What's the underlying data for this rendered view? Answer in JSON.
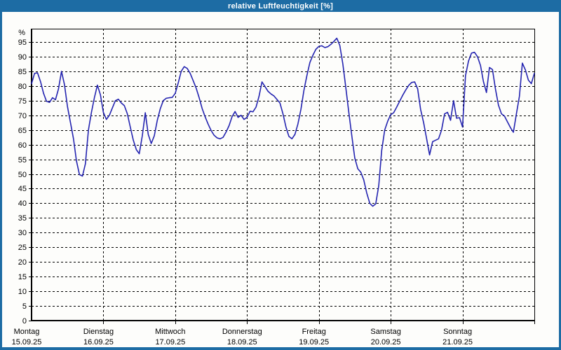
{
  "window": {
    "title": "relative Luftfeuchtigkeit [%]",
    "titlebar_color": "#1d6ca4",
    "content_background": "#fdfdfb"
  },
  "chart_data": {
    "type": "line",
    "title": "relative Luftfeuchtigkeit [%]",
    "ylabel": "%",
    "unit": "%",
    "ylim": [
      0,
      99
    ],
    "grid": "dashed",
    "legend_position": "none",
    "line_color": "#2424b0",
    "grid_color": "#000000",
    "axis_color": "#000000",
    "y_ticks": [
      0,
      5,
      10,
      15,
      20,
      25,
      30,
      35,
      40,
      45,
      50,
      55,
      60,
      65,
      70,
      75,
      80,
      85,
      90,
      95
    ],
    "x_days": [
      {
        "weekday": "Montag",
        "date": "15.09.25"
      },
      {
        "weekday": "Dienstag",
        "date": "16.09.25"
      },
      {
        "weekday": "Mittwoch",
        "date": "17.09.25"
      },
      {
        "weekday": "Donnerstag",
        "date": "18.09.25"
      },
      {
        "weekday": "Freitag",
        "date": "19.09.25"
      },
      {
        "weekday": "Samstag",
        "date": "20.09.25"
      },
      {
        "weekday": "Sonntag",
        "date": "21.09.25"
      }
    ],
    "sampling": "hourly",
    "series": [
      {
        "name": "relative Luftfeuchtigkeit",
        "values": [
          80.8,
          84.3,
          84.5,
          81.5,
          77.5,
          74.8,
          74.4,
          76.0,
          75.3,
          79.0,
          85.0,
          80.5,
          73.0,
          67.5,
          62.0,
          54.5,
          49.8,
          49.3,
          53.5,
          65.0,
          71.0,
          76.0,
          80.3,
          77.0,
          71.0,
          68.6,
          70.0,
          72.5,
          75.0,
          75.5,
          74.2,
          73.3,
          70.5,
          66.0,
          61.5,
          58.3,
          56.9,
          63.0,
          70.9,
          63.5,
          60.4,
          63.0,
          68.3,
          72.2,
          75.0,
          75.8,
          76.0,
          76.1,
          77.5,
          81.0,
          85.0,
          86.6,
          86.0,
          84.3,
          81.8,
          79.3,
          76.0,
          72.3,
          69.5,
          67.0,
          64.8,
          63.2,
          62.3,
          62.0,
          62.5,
          64.3,
          66.5,
          69.5,
          71.3,
          69.3,
          70.0,
          68.6,
          69.3,
          71.4,
          71.2,
          72.8,
          76.5,
          81.4,
          79.8,
          78.2,
          77.3,
          76.6,
          75.4,
          74.2,
          70.5,
          66.0,
          62.8,
          62.0,
          63.5,
          67.0,
          72.0,
          78.5,
          83.5,
          88.0,
          90.5,
          92.5,
          93.5,
          93.7,
          93.1,
          93.4,
          94.2,
          95.2,
          96.3,
          93.8,
          87.5,
          79.5,
          71.0,
          63.0,
          55.5,
          51.8,
          50.6,
          48.0,
          43.5,
          40.0,
          39.0,
          39.8,
          46.0,
          58.0,
          65.0,
          68.0,
          70.2,
          70.9,
          72.8,
          74.8,
          76.8,
          78.6,
          80.2,
          81.2,
          81.4,
          79.0,
          72.0,
          67.5,
          62.0,
          56.5,
          61.0,
          61.5,
          62.0,
          65.0,
          70.5,
          71.0,
          68.3,
          75.0,
          69.0,
          69.2,
          66.0,
          83.5,
          88.5,
          91.2,
          91.5,
          90.0,
          87.0,
          81.5,
          77.8,
          86.3,
          85.6,
          79.0,
          73.5,
          70.5,
          69.8,
          67.8,
          65.8,
          64.2,
          70.5,
          76.5,
          87.8,
          85.5,
          82.0,
          80.8,
          84.3
        ]
      }
    ]
  }
}
